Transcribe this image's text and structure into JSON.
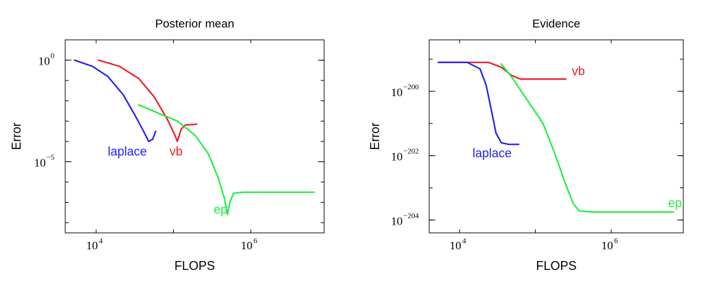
{
  "chart_data": [
    {
      "type": "line",
      "title": "Posterior mean",
      "xlabel": "FLOPS",
      "ylabel": "Error",
      "xscale": "log",
      "yscale": "log",
      "xlim_log10": [
        3.6,
        6.95
      ],
      "ylim_log10": [
        -8.5,
        1.0
      ],
      "xticks": [
        {
          "base": "10",
          "exp": "4",
          "log10": 4
        },
        {
          "base": "10",
          "exp": "6",
          "log10": 6
        }
      ],
      "yticks": [
        {
          "base": "10",
          "exp": "0",
          "log10": 0
        },
        {
          "base": "10",
          "exp": "−5",
          "log10": -5
        }
      ],
      "legend": "labels next to curves",
      "series": [
        {
          "name": "laplace",
          "color": "#2222ee",
          "label_at": [
            4.15,
            -4.7
          ],
          "points": [
            [
              3.72,
              0.0
            ],
            [
              3.95,
              -0.3
            ],
            [
              4.15,
              -0.8
            ],
            [
              4.35,
              -1.7
            ],
            [
              4.5,
              -2.7
            ],
            [
              4.6,
              -3.4
            ],
            [
              4.68,
              -4.0
            ],
            [
              4.73,
              -3.9
            ],
            [
              4.77,
              -3.5
            ]
          ]
        },
        {
          "name": "vb",
          "color": "#ee1c2b",
          "label_at": [
            4.95,
            -4.7
          ],
          "points": [
            [
              4.03,
              0.0
            ],
            [
              4.3,
              -0.3
            ],
            [
              4.55,
              -0.9
            ],
            [
              4.75,
              -1.8
            ],
            [
              4.92,
              -2.9
            ],
            [
              5.02,
              -3.7
            ],
            [
              5.05,
              -4.0
            ],
            [
              5.1,
              -3.4
            ],
            [
              5.15,
              -3.2
            ],
            [
              5.3,
              -3.15
            ]
          ]
        },
        {
          "name": "ep",
          "color": "#22ee44",
          "label_at": [
            5.52,
            -7.55
          ],
          "points": [
            [
              4.55,
              -2.2
            ],
            [
              4.8,
              -2.6
            ],
            [
              5.05,
              -3.0
            ],
            [
              5.28,
              -3.7
            ],
            [
              5.45,
              -4.6
            ],
            [
              5.58,
              -5.8
            ],
            [
              5.66,
              -6.8
            ],
            [
              5.7,
              -7.6
            ],
            [
              5.73,
              -7.0
            ],
            [
              5.78,
              -6.55
            ],
            [
              5.9,
              -6.5
            ],
            [
              6.3,
              -6.5
            ],
            [
              6.82,
              -6.5
            ]
          ]
        }
      ]
    },
    {
      "type": "line",
      "title": "Evidence",
      "xlabel": "FLOPS",
      "ylabel": "Error",
      "xscale": "log",
      "yscale": "log",
      "xlim_log10": [
        3.6,
        6.95
      ],
      "ylim_log10": [
        -204.4,
        -198.4
      ],
      "xticks": [
        {
          "base": "10",
          "exp": "4",
          "log10": 4
        },
        {
          "base": "10",
          "exp": "6",
          "log10": 6
        }
      ],
      "yticks": [
        {
          "base": "10",
          "exp": "−200",
          "log10": -200
        },
        {
          "base": "10",
          "exp": "−202",
          "log10": -202
        },
        {
          "base": "10",
          "exp": "−204",
          "log10": -204
        }
      ],
      "legend": "labels next to curves",
      "series": [
        {
          "name": "vb",
          "color": "#ee1c2b",
          "label_at": [
            5.48,
            -199.5
          ],
          "points": [
            [
              3.72,
              -199.1
            ],
            [
              4.1,
              -199.1
            ],
            [
              4.38,
              -199.1
            ],
            [
              4.55,
              -199.25
            ],
            [
              4.68,
              -199.5
            ],
            [
              4.8,
              -199.62
            ],
            [
              5.0,
              -199.62
            ],
            [
              5.4,
              -199.62
            ]
          ]
        },
        {
          "name": "laplace",
          "color": "#2222ee",
          "label_at": [
            4.17,
            -202.05
          ],
          "points": [
            [
              3.72,
              -199.1
            ],
            [
              4.1,
              -199.1
            ],
            [
              4.27,
              -199.3
            ],
            [
              4.35,
              -199.8
            ],
            [
              4.42,
              -200.6
            ],
            [
              4.48,
              -201.3
            ],
            [
              4.55,
              -201.6
            ],
            [
              4.65,
              -201.65
            ],
            [
              4.78,
              -201.65
            ]
          ]
        },
        {
          "name": "ep",
          "color": "#22ee44",
          "label_at": [
            6.75,
            -203.6
          ],
          "points": [
            [
              4.55,
              -199.15
            ],
            [
              4.7,
              -199.6
            ],
            [
              4.9,
              -200.3
            ],
            [
              5.1,
              -201.0
            ],
            [
              5.25,
              -201.9
            ],
            [
              5.4,
              -202.9
            ],
            [
              5.5,
              -203.5
            ],
            [
              5.58,
              -203.72
            ],
            [
              5.75,
              -203.75
            ],
            [
              6.3,
              -203.75
            ],
            [
              6.82,
              -203.75
            ]
          ]
        }
      ]
    }
  ]
}
